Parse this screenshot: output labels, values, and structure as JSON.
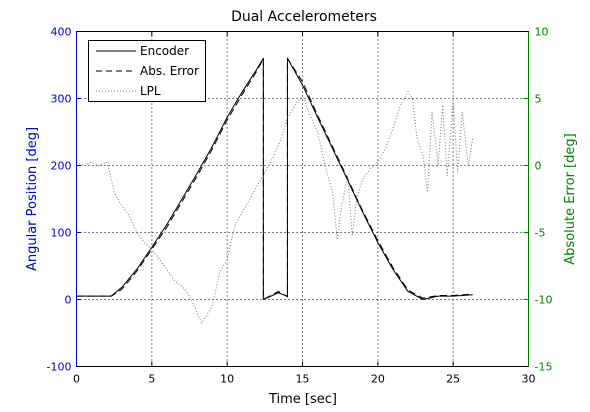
{
  "chart_data": {
    "type": "line",
    "title": "Dual Accelerometers",
    "xlabel": "Time [sec]",
    "ylabel_left": "Angular Position [deg]",
    "ylabel_right": "Absolute Error [deg]",
    "xlim": [
      0,
      30
    ],
    "ylim_left": [
      -100,
      400
    ],
    "ylim_right": [
      -15,
      10
    ],
    "grid": true,
    "legend_position": "top-left",
    "colors": {
      "left_axis": "#0000cc",
      "right_axis": "#008000",
      "encoder": "#000000",
      "abs_error": "#000000",
      "lpl": "#777777"
    },
    "x_ticks": [
      0,
      5,
      10,
      15,
      20,
      25,
      30
    ],
    "x_tick_labels": [
      "0",
      "5",
      "10",
      "15",
      "20",
      "25",
      "30"
    ],
    "y_left_ticks": [
      -100,
      0,
      100,
      200,
      300,
      400
    ],
    "y_left_tick_labels": [
      "-100",
      "0",
      "100",
      "200",
      "300",
      "400"
    ],
    "y_right_ticks": [
      -15,
      -10,
      -5,
      0,
      5,
      10
    ],
    "y_right_tick_labels": [
      "-15",
      "-10",
      "-5",
      "0",
      "5",
      "10"
    ],
    "series": [
      {
        "name": "Encoder",
        "style": "solid",
        "x": [
          0,
          2.3,
          3,
          4,
          5,
          6,
          7,
          8,
          9,
          10,
          11,
          12,
          12.4,
          12.4,
          13.4,
          14.0,
          14.0,
          15,
          16,
          17,
          18,
          19,
          20,
          21,
          22,
          23.0,
          24,
          25,
          26.3
        ],
        "y": [
          5,
          5,
          18,
          45,
          78,
          112,
          150,
          188,
          228,
          272,
          310,
          345,
          360,
          0,
          10,
          5,
          360,
          320,
          272,
          225,
          178,
          130,
          85,
          45,
          12,
          0,
          5,
          5,
          7
        ]
      },
      {
        "name": "Abs. Error",
        "style": "dashed",
        "x": [
          0,
          2.3,
          3,
          4,
          5,
          6,
          7,
          8,
          9,
          10,
          11,
          12,
          12.4,
          12.4,
          13.4,
          14.0,
          14.0,
          15,
          16,
          17,
          18,
          19,
          20,
          21,
          22,
          23.0,
          24,
          25,
          26.3
        ],
        "y": [
          5,
          5,
          15,
          42,
          75,
          108,
          146,
          184,
          224,
          268,
          306,
          342,
          360,
          0,
          12,
          4,
          360,
          325,
          275,
          228,
          180,
          132,
          88,
          48,
          14,
          2,
          6,
          6,
          8
        ]
      },
      {
        "name": "LPL",
        "style": "dotted",
        "x": [
          0,
          0.5,
          1,
          1.5,
          2,
          2.2,
          2.5,
          3,
          3.5,
          4,
          4.5,
          5,
          5.5,
          6,
          6.5,
          7,
          7.5,
          8,
          8.3,
          8.6,
          9,
          9.5,
          10,
          10.5,
          11,
          11.5,
          12,
          12.5,
          13,
          13.5,
          14,
          14.5,
          15,
          15.5,
          16,
          16.5,
          17,
          17.3,
          17.6,
          18,
          18.3,
          18.6,
          19,
          19.5,
          20,
          20.5,
          21,
          21.5,
          22,
          22.3,
          22.6,
          23,
          23.3,
          23.6,
          24,
          24.3,
          24.6,
          25,
          25.3,
          25.6,
          26,
          26.3
        ],
        "y": [
          205,
          200,
          205,
          200,
          205,
          190,
          160,
          140,
          125,
          100,
          85,
          75,
          60,
          45,
          28,
          20,
          5,
          -20,
          -35,
          -25,
          -10,
          40,
          60,
          110,
          130,
          150,
          170,
          190,
          210,
          235,
          270,
          290,
          305,
          275,
          250,
          200,
          160,
          90,
          140,
          185,
          95,
          150,
          180,
          195,
          205,
          225,
          255,
          290,
          310,
          300,
          240,
          215,
          160,
          280,
          200,
          290,
          185,
          295,
          190,
          280,
          200,
          240
        ]
      }
    ],
    "legend": [
      "Encoder",
      "Abs. Error",
      "LPL"
    ]
  }
}
